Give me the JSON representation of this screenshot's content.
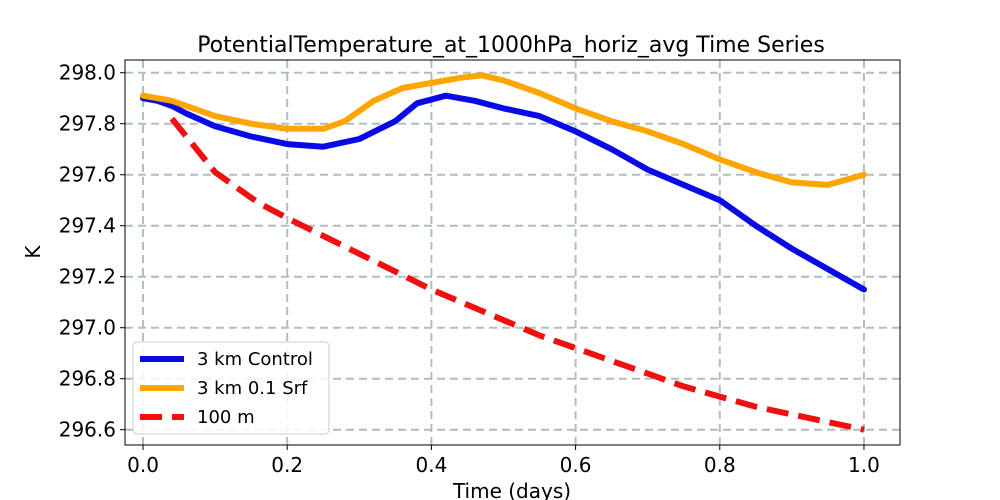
{
  "chart_data": {
    "type": "line",
    "title": "PotentialTemperature_at_1000hPa_horiz_avg Time Series",
    "xlabel": "Time (days)",
    "ylabel": "K",
    "xlim": [
      -0.025,
      1.05
    ],
    "ylim": [
      296.54,
      298.05
    ],
    "xticks": [
      0.0,
      0.2,
      0.4,
      0.6,
      0.8,
      1.0
    ],
    "xtick_labels": [
      "0.0",
      "0.2",
      "0.4",
      "0.6",
      "0.8",
      "1.0"
    ],
    "yticks": [
      296.6,
      296.8,
      297.0,
      297.2,
      297.4,
      297.6,
      297.8,
      298.0
    ],
    "ytick_labels": [
      "296.6",
      "296.8",
      "297.0",
      "297.2",
      "297.4",
      "297.6",
      "297.8",
      "298.0"
    ],
    "grid": true,
    "legend_position": "lower-left",
    "series": [
      {
        "name": "3 km Control",
        "color": "#0a0ae6",
        "style": "solid",
        "x": [
          0.0,
          0.02,
          0.04,
          0.06,
          0.1,
          0.15,
          0.2,
          0.25,
          0.3,
          0.35,
          0.38,
          0.42,
          0.46,
          0.5,
          0.55,
          0.6,
          0.65,
          0.7,
          0.75,
          0.8,
          0.85,
          0.9,
          0.95,
          1.0
        ],
        "y": [
          297.9,
          297.89,
          297.87,
          297.84,
          297.79,
          297.75,
          297.72,
          297.71,
          297.74,
          297.81,
          297.88,
          297.91,
          297.89,
          297.86,
          297.83,
          297.77,
          297.7,
          297.62,
          297.56,
          297.5,
          297.4,
          297.31,
          297.23,
          297.15
        ]
      },
      {
        "name": "3 km 0.1 Srf",
        "color": "#ffa500",
        "style": "solid",
        "x": [
          0.0,
          0.02,
          0.04,
          0.06,
          0.1,
          0.15,
          0.2,
          0.25,
          0.28,
          0.32,
          0.36,
          0.4,
          0.44,
          0.47,
          0.5,
          0.55,
          0.6,
          0.65,
          0.7,
          0.75,
          0.8,
          0.85,
          0.9,
          0.95,
          1.0
        ],
        "y": [
          297.91,
          297.9,
          297.89,
          297.87,
          297.83,
          297.8,
          297.78,
          297.78,
          297.81,
          297.89,
          297.94,
          297.96,
          297.98,
          297.99,
          297.97,
          297.92,
          297.86,
          297.81,
          297.77,
          297.72,
          297.66,
          297.61,
          297.57,
          297.56,
          297.6
        ]
      },
      {
        "name": "100 m",
        "color": "#f01010",
        "style": "dashed",
        "x": [
          0.04,
          0.06,
          0.08,
          0.1,
          0.13,
          0.16,
          0.2,
          0.25,
          0.3,
          0.35,
          0.4,
          0.45,
          0.5,
          0.55,
          0.6,
          0.65,
          0.7,
          0.75,
          0.8,
          0.85,
          0.9,
          0.95,
          1.0
        ],
        "y": [
          297.82,
          297.75,
          297.68,
          297.61,
          297.55,
          297.49,
          297.43,
          297.36,
          297.29,
          297.22,
          297.15,
          297.09,
          297.03,
          296.97,
          296.92,
          296.87,
          296.82,
          296.77,
          296.73,
          296.69,
          296.66,
          296.63,
          296.6
        ]
      }
    ]
  }
}
